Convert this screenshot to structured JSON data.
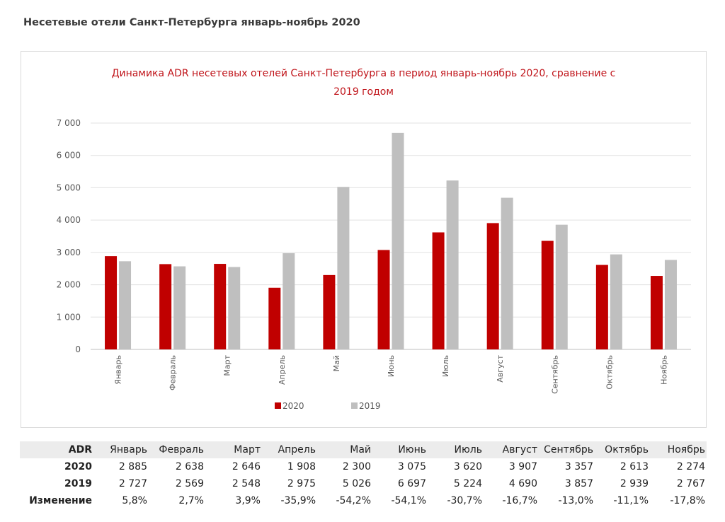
{
  "page": {
    "title": "Несетевые отели Санкт-Петербурга январь-ноябрь 2020"
  },
  "colors": {
    "s2020": "#c00000",
    "s2019": "#bfbfbf",
    "title": "#c0141a",
    "positive": "#6a8a2e",
    "negative": "#d01c1c"
  },
  "chart_data": {
    "type": "bar",
    "title_lines": [
      "Динамика ADR несетевых отелей Санкт-Петербурга в период январь-ноябрь 2020, сравнение с",
      "2019 годом"
    ],
    "categories": [
      "Январь",
      "Февраль",
      "Март",
      "Апрель",
      "Май",
      "Июнь",
      "Июль",
      "Август",
      "Сентябрь",
      "Октябрь",
      "Ноябрь"
    ],
    "series": [
      {
        "name": "2020",
        "values": [
          2885,
          2638,
          2646,
          1908,
          2300,
          3075,
          3620,
          3907,
          3357,
          2613,
          2274
        ]
      },
      {
        "name": "2019",
        "values": [
          2727,
          2569,
          2548,
          2975,
          5026,
          6697,
          5224,
          4690,
          3857,
          2939,
          2767
        ]
      }
    ],
    "ylim": [
      0,
      7000
    ],
    "yticks": [
      "0",
      "1 000",
      "2 000",
      "3 000",
      "4 000",
      "5 000",
      "6 000",
      "7 000"
    ],
    "grid": true,
    "legend": "bottom"
  },
  "table": {
    "header": [
      "ADR",
      "Январь",
      "Февраль",
      "Март",
      "Апрель",
      "Май",
      "Июнь",
      "Июль",
      "Август",
      "Сентябрь",
      "Октябрь",
      "Ноябрь"
    ],
    "rows": [
      {
        "label": "2020",
        "cells": [
          "2 885",
          "2 638",
          "2 646",
          "1 908",
          "2 300",
          "3 075",
          "3 620",
          "3 907",
          "3 357",
          "2 613",
          "2 274"
        ]
      },
      {
        "label": "2019",
        "cells": [
          "2 727",
          "2 569",
          "2 548",
          "2 975",
          "5 026",
          "6 697",
          "5 224",
          "4 690",
          "3 857",
          "2 939",
          "2 767"
        ]
      },
      {
        "label": "Изменение",
        "cells": [
          "5,8%",
          "2,7%",
          "3,9%",
          "-35,9%",
          "-54,2%",
          "-54,1%",
          "-30,7%",
          "-16,7%",
          "-13,0%",
          "-11,1%",
          "-17,8%"
        ]
      }
    ]
  }
}
